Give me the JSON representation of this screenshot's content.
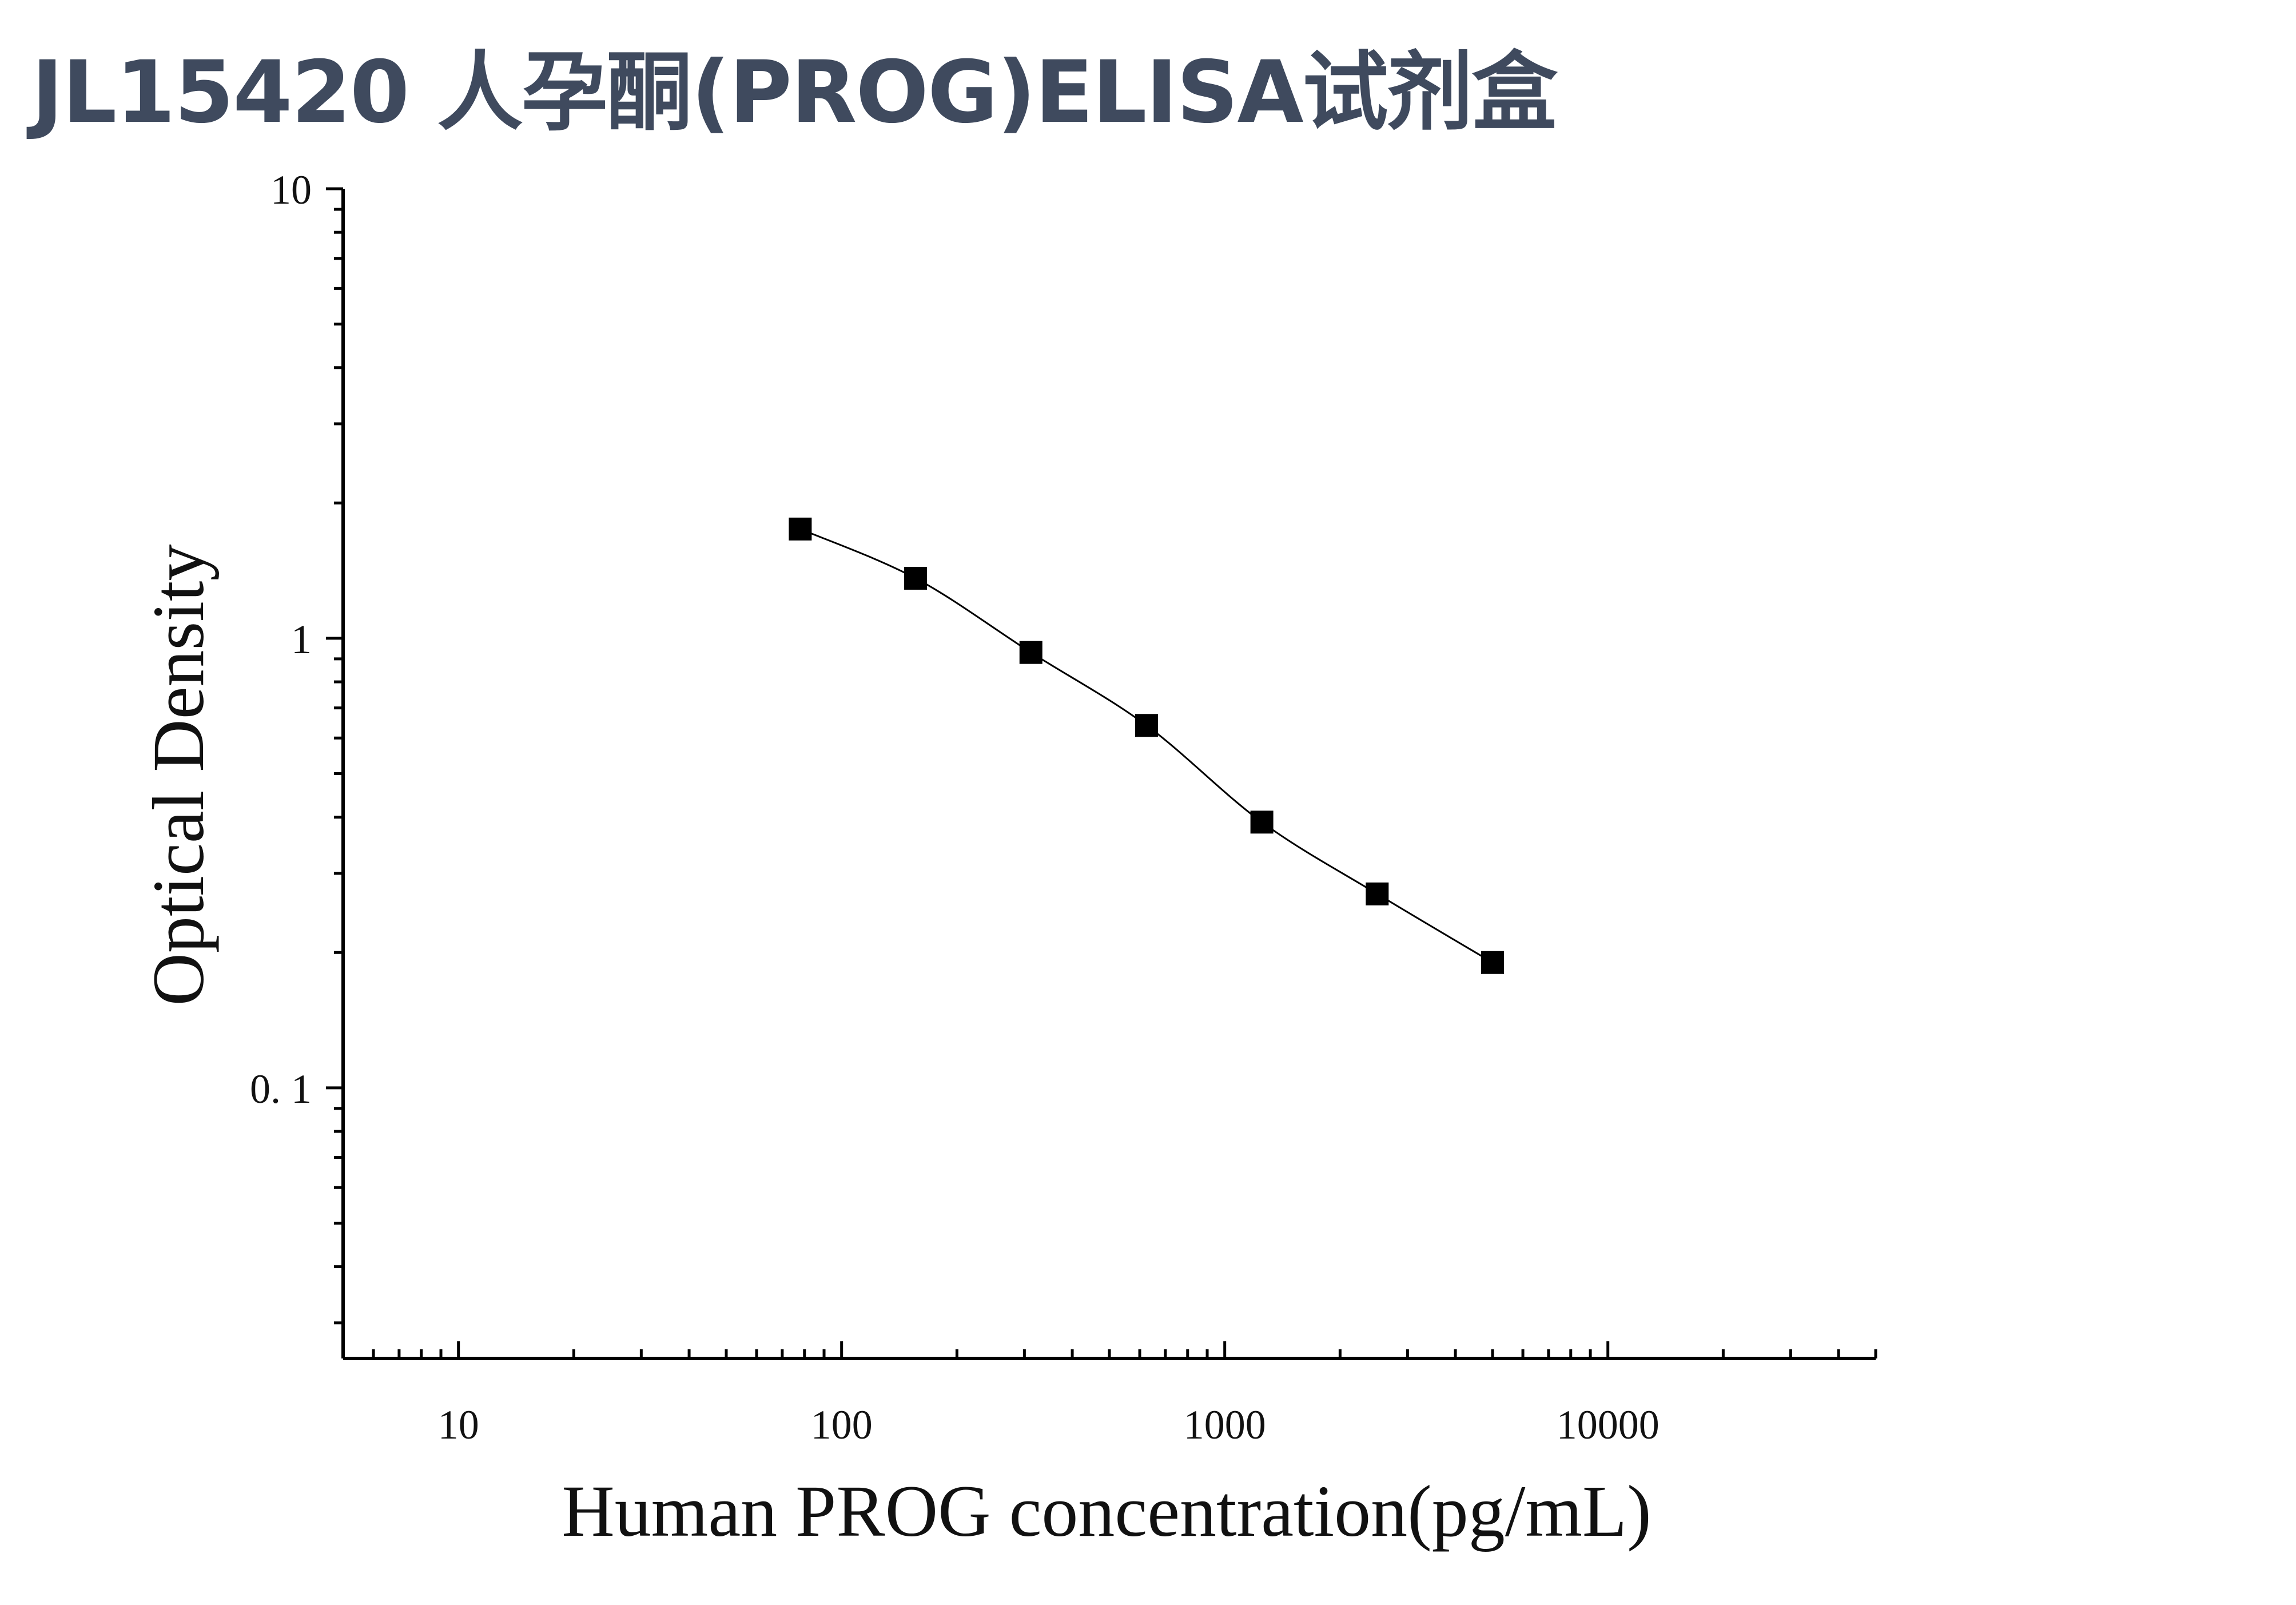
{
  "chart_data": {
    "type": "scatter",
    "title": "JL15420 人孕酮(PROG)ELISA试剂盒",
    "xlabel": "Human PROG concentration(pg/mL)",
    "ylabel": "Optical Density",
    "xscale": "log",
    "yscale": "log",
    "xlim": [
      5,
      50000
    ],
    "ylim": [
      0.025,
      10
    ],
    "x_ticks": [
      {
        "value": 10,
        "label": "10"
      },
      {
        "value": 100,
        "label": "100"
      },
      {
        "value": 1000,
        "label": "1000"
      },
      {
        "value": 10000,
        "label": "10000"
      }
    ],
    "y_ticks": [
      {
        "value": 0.1,
        "label": "0. 1"
      },
      {
        "value": 1,
        "label": "1"
      },
      {
        "value": 10,
        "label": "10"
      }
    ],
    "grid": false,
    "legend": "none",
    "marker": "square",
    "series": [
      {
        "x": [
          78,
          156,
          312,
          625,
          1250,
          2500,
          5000
        ],
        "y": [
          1.75,
          1.36,
          0.93,
          0.64,
          0.39,
          0.27,
          0.19
        ],
        "fit": "four-parameter-logistic curve"
      }
    ],
    "colors": {
      "marker": "#000000",
      "curve": "#000000",
      "axes": "#000000",
      "title": "#3f4a5e"
    }
  }
}
